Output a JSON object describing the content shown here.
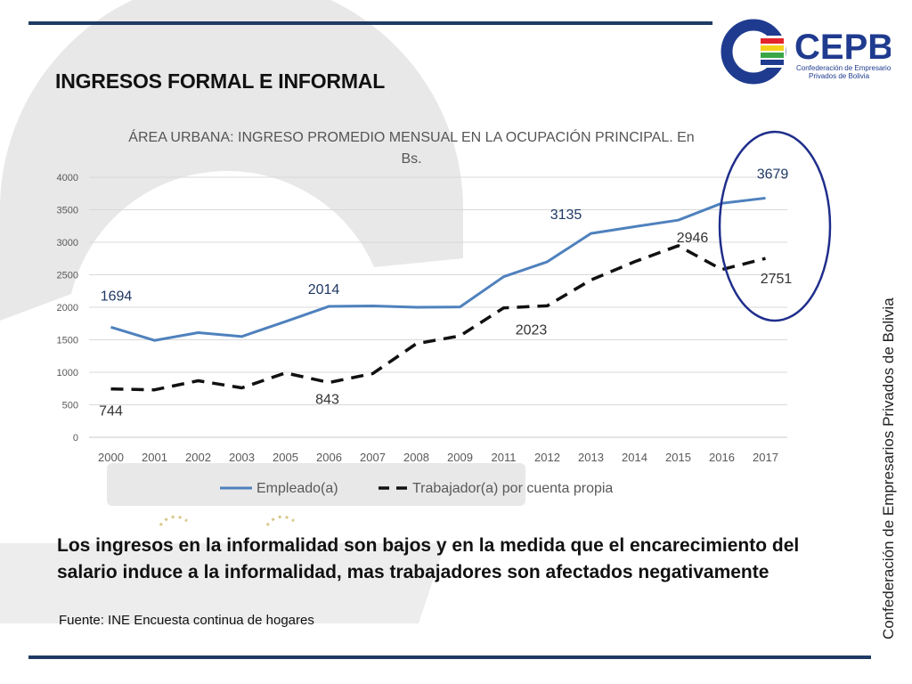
{
  "slide": {
    "title": "INGRESOS FORMAL E INFORMAL",
    "conclusion": "Los ingresos en la informalidad son bajos y en la medida que el encarecimiento del salario induce a la informalidad, mas trabajadores son afectados negativamente",
    "source": "Fuente: INE Encuesta continua de hogares",
    "side_text": "Confederación de Empresarios Privados de Bolivia"
  },
  "logo": {
    "text": "CEPB",
    "subtitle_line1": "Confederación de Empresarios",
    "subtitle_line2": "Privados de Bolivia",
    "colors": [
      "#e3262b",
      "#f5d21a",
      "#3aa648",
      "#1f3b8f"
    ]
  },
  "colors": {
    "rule": "#1f3b63",
    "series_empleado": "#4f81bd",
    "series_cuenta_propia": "#111111",
    "highlight_ellipse": "#1f2e8c",
    "label_empleado": "#1f3864",
    "label_cuenta_propia": "#333333"
  },
  "chart_data": {
    "type": "line",
    "title_line1": "ÁREA URBANA: INGRESO PROMEDIO MENSUAL EN LA OCUPACIÓN PRINCIPAL. En",
    "title_line2": "Bs.",
    "categories": [
      "2000",
      "2001",
      "2002",
      "2003",
      "2005",
      "2006",
      "2007",
      "2008",
      "2009",
      "2011",
      "2012",
      "2013",
      "2014",
      "2015",
      "2016",
      "2017"
    ],
    "ylim": [
      0,
      4000
    ],
    "yticks": [
      "0",
      "500",
      "1000",
      "1500",
      "2000",
      "2500",
      "3000",
      "3500",
      "4000"
    ],
    "grid": true,
    "legend_position": "bottom",
    "series": [
      {
        "name": "Empleado(a)",
        "style": "solid",
        "values": [
          1694,
          1490,
          1610,
          1550,
          1780,
          2014,
          2020,
          2000,
          2005,
          2470,
          2700,
          3135,
          3240,
          3340,
          3600,
          3679
        ],
        "labels": [
          {
            "index": 0,
            "text": "1694"
          },
          {
            "index": 5,
            "text": "2014"
          },
          {
            "index": 11,
            "text": "3135"
          },
          {
            "index": 15,
            "text": "3679"
          }
        ]
      },
      {
        "name": "Trabajador(a) por cuenta propia",
        "style": "dashed",
        "values": [
          744,
          730,
          870,
          760,
          990,
          843,
          980,
          1440,
          1560,
          1990,
          2023,
          2420,
          2700,
          2946,
          2580,
          2751
        ],
        "labels": [
          {
            "index": 0,
            "text": "744"
          },
          {
            "index": 5,
            "text": "843"
          },
          {
            "index": 10,
            "text": "2023"
          },
          {
            "index": 13,
            "text": "2946"
          },
          {
            "index": 15,
            "text": "2751"
          }
        ]
      }
    ]
  }
}
